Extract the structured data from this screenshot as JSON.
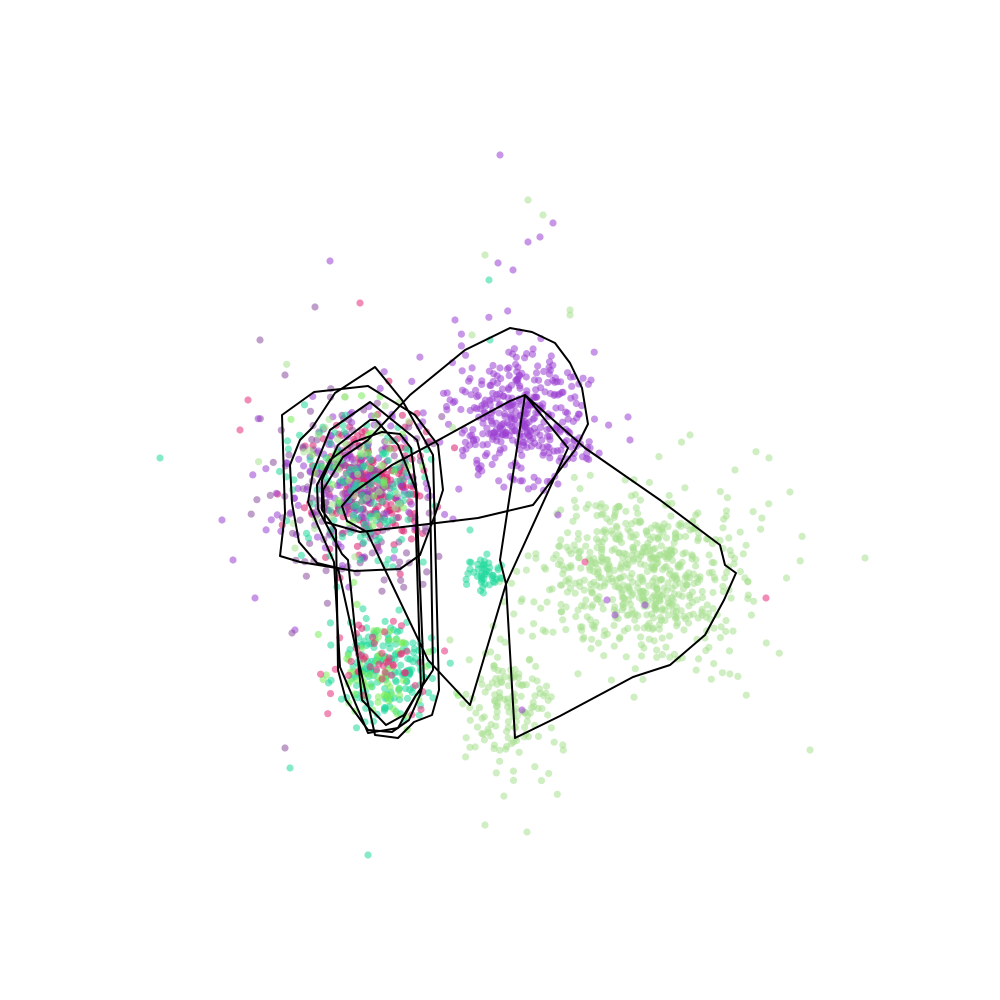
{
  "chart_data": {
    "type": "scatter",
    "axes_visible": false,
    "grid": false,
    "legend": "none",
    "point_alpha": 0.55,
    "xlim": [
      0,
      100
    ],
    "ylim": [
      0,
      100
    ],
    "clusters": [
      {
        "color": "#9b3fd1",
        "center": [
          52.0,
          58.0
        ],
        "spread": [
          3.4,
          3.3
        ],
        "count": 380
      },
      {
        "color": "#a7e08f",
        "center": [
          64.5,
          42.5
        ],
        "spread": [
          5.0,
          4.2
        ],
        "count": 620
      },
      {
        "color": "#a7e08f",
        "center": [
          51.0,
          29.5
        ],
        "spread": [
          2.2,
          3.5
        ],
        "count": 150
      },
      {
        "color": "#1fd99a",
        "center": [
          38.5,
          33.5
        ],
        "spread": [
          2.3,
          2.6
        ],
        "count": 170
      },
      {
        "color": "#78ec5a",
        "center": [
          37.5,
          33.0
        ],
        "spread": [
          2.5,
          2.8
        ],
        "count": 70
      },
      {
        "color": "#e62d7a",
        "center": [
          38.0,
          33.5
        ],
        "spread": [
          2.6,
          2.6
        ],
        "count": 45
      },
      {
        "color": "#1fd99a",
        "center": [
          48.5,
          42.5
        ],
        "spread": [
          0.9,
          1.0
        ],
        "count": 45
      },
      {
        "color": "#d91f6b",
        "center": [
          37.0,
          51.5
        ],
        "spread": [
          3.0,
          3.5
        ],
        "count": 220
      },
      {
        "color": "#8a4e9e",
        "center": [
          35.5,
          51.0
        ],
        "spread": [
          3.5,
          4.0
        ],
        "count": 200
      },
      {
        "color": "#9b3fd1",
        "center": [
          35.0,
          52.0
        ],
        "spread": [
          3.8,
          4.0
        ],
        "count": 120
      },
      {
        "color": "#1fd99a",
        "center": [
          36.5,
          51.0
        ],
        "spread": [
          3.5,
          3.8
        ],
        "count": 130
      },
      {
        "color": "#78ec5a",
        "center": [
          36.0,
          52.0
        ],
        "spread": [
          3.5,
          4.0
        ],
        "count": 40
      },
      {
        "color": "#a7e08f",
        "center": [
          36.0,
          53.0
        ],
        "spread": [
          4.0,
          4.5
        ],
        "count": 40
      }
    ],
    "extra_points": [
      {
        "color": "#9b3fd1",
        "x": [
          50.0,
          55.3,
          54.0,
          52.8,
          33.0,
          62.8,
          63.0,
          25.5,
          22.2,
          23.3,
          29.5,
          45.5,
          49.8,
          45.0,
          64.5,
          52.2,
          61.5,
          60.7,
          51.3,
          55.8
        ],
        "y": [
          84.5,
          77.7,
          76.3,
          75.8,
          73.9,
          58.3,
          56.0,
          40.2,
          48.0,
          44.0,
          37.0,
          68.0,
          73.7,
          60.0,
          39.5,
          29.0,
          38.5,
          40.0,
          73.0,
          48.5
        ]
      },
      {
        "color": "#a7e08f",
        "x": [
          52.8,
          54.3,
          57.0,
          69.0,
          73.5,
          79.0,
          86.5,
          81.0,
          48.5,
          52.7,
          57.0,
          45.0,
          47.2,
          48.5
        ],
        "y": [
          80.0,
          78.5,
          68.5,
          56.5,
          53.0,
          50.8,
          44.2,
          25.0,
          17.5,
          16.8,
          69.0,
          36.0,
          66.5,
          74.5
        ]
      },
      {
        "color": "#1fd99a",
        "x": [
          16.0,
          36.8,
          29.0,
          48.9,
          49.0,
          47.0
        ],
        "y": [
          54.2,
          14.5,
          23.2,
          72.0,
          66.0,
          47.0
        ]
      },
      {
        "color": "#e62d7a",
        "x": [
          36.0,
          24.0,
          24.8,
          76.6,
          58.5
        ],
        "y": [
          69.7,
          57.0,
          60.0,
          40.2,
          43.8
        ]
      },
      {
        "color": "#8a4e9e",
        "x": [
          31.5,
          26.0,
          28.5,
          29.2,
          28.5
        ],
        "y": [
          69.3,
          66.0,
          62.5,
          36.7,
          25.2
        ]
      }
    ],
    "hulls": [
      {
        "x": [
          51.0,
          53.2,
          55.5,
          57.0,
          58.2,
          58.8,
          57.5,
          53.3,
          47.8,
          42.0,
          36.0,
          32.5,
          32.3,
          34.3,
          36.8,
          41.0,
          46.5
        ],
        "y": [
          67.2,
          66.8,
          65.7,
          63.7,
          61.2,
          57.6,
          55.0,
          49.5,
          48.2,
          47.5,
          46.8,
          47.8,
          51.0,
          54.3,
          56.0,
          60.5,
          65.0
        ]
      },
      {
        "x": [
          52.5,
          51.0,
          47.5,
          43.5,
          39.2,
          35.4,
          34.2,
          34.7,
          36.7,
          42.8,
          47.0,
          50.6,
          50.0
        ],
        "y": [
          60.5,
          59.9,
          58.0,
          55.8,
          53.5,
          50.8,
          49.4,
          47.9,
          46.8,
          34.0,
          29.5,
          41.6,
          44.0
        ]
      },
      {
        "x": [
          52.5,
          58.5,
          66.0,
          72.0,
          72.5,
          73.6,
          72.4,
          70.5,
          67.0,
          63.3,
          56.0,
          51.5,
          50.6,
          56.8
        ],
        "y": [
          60.5,
          55.2,
          50.0,
          45.5,
          43.5,
          42.7,
          40.0,
          36.5,
          33.5,
          32.3,
          28.4,
          26.2,
          41.6,
          55.2
        ]
      },
      {
        "x": [
          37.5,
          33.5,
          31.2,
          30.0,
          29.0,
          29.2,
          29.9,
          31.7,
          33.8,
          37.5,
          39.8,
          41.4,
          43.2,
          43.9,
          43.3,
          40.2
        ],
        "y": [
          63.3,
          60.7,
          57.2,
          56.0,
          53.5,
          49.7,
          45.8,
          43.7,
          43.2,
          26.5,
          26.2,
          27.8,
          28.5,
          31.0,
          54.5,
          60.0
        ]
      },
      {
        "x": [
          36.8,
          31.4,
          28.2,
          28.5,
          28.0,
          30.0,
          35.5,
          40.0,
          42.0,
          43.5,
          44.3,
          43.8,
          41.5
        ],
        "y": [
          61.4,
          60.8,
          58.5,
          48.7,
          44.4,
          43.8,
          42.9,
          43.1,
          44.5,
          48.5,
          51.0,
          55.5,
          58.5
        ]
      },
      {
        "x": [
          37.0,
          33.0,
          31.3,
          30.8,
          31.8,
          33.4,
          34.0,
          36.8,
          39.8,
          41.5,
          43.3,
          43.0,
          41.7
        ],
        "y": [
          59.8,
          57.0,
          52.8,
          49.8,
          47.4,
          43.8,
          33.3,
          26.7,
          27.2,
          30.3,
          33.0,
          51.0,
          56.0
        ]
      },
      {
        "x": [
          37.0,
          33.8,
          32.2,
          32.2,
          33.6,
          33.8,
          34.6,
          36.8,
          39.2,
          40.9,
          42.0,
          42.4,
          41.6,
          39.8,
          37.6
        ],
        "y": [
          58.0,
          55.5,
          52.0,
          49.0,
          47.0,
          33.0,
          30.0,
          27.0,
          26.8,
          28.0,
          30.5,
          32.0,
          51.0,
          55.5,
          58.0
        ]
      },
      {
        "x": [
          38.2,
          35.4,
          33.0,
          31.7,
          31.8,
          34.2,
          34.8,
          36.2,
          38.6,
          40.4,
          41.6,
          42.1,
          41.6,
          41.7,
          41.1,
          40.0
        ],
        "y": [
          56.8,
          55.8,
          54.0,
          51.5,
          49.1,
          44.6,
          44.0,
          30.0,
          27.5,
          28.5,
          30.5,
          31.0,
          46.5,
          50.5,
          55.2,
          56.6
        ]
      }
    ]
  }
}
